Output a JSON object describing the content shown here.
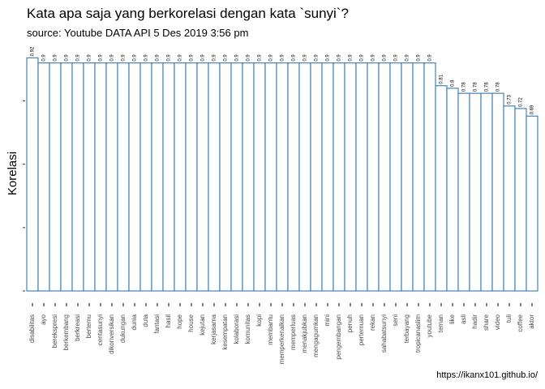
{
  "chart_data": {
    "type": "bar",
    "title": "Kata apa saja yang berkorelasi dengan kata `sunyi`?",
    "subtitle": "source: Youtube DATA API 5 Des 2019 3:56 pm",
    "y_label": "Korelasi",
    "caption": "https://ikanx101.github.io/",
    "categories": [
      "disabilitas",
      "ayo",
      "berekspresi",
      "berkembang",
      "berkreasi",
      "bertemu",
      "centasunyi",
      "dikonversikan",
      "dukungan",
      "dunia",
      "duta",
      "fantasi",
      "hasil",
      "hope",
      "house",
      "kejutan",
      "kerjasama",
      "kesempatan",
      "kolaborasi",
      "komunitas",
      "kopi",
      "membantu",
      "memperkenalkan",
      "memperluas",
      "menakjubkan",
      "mengagumkan",
      "mini",
      "pengembangan",
      "penuh",
      "pertemuan",
      "rekan",
      "sahabatsunyi",
      "seni",
      "terbayang",
      "tropicanaslim",
      "youtube",
      "teman",
      "like",
      "asli",
      "hadir",
      "share",
      "video",
      "tuli",
      "coffee",
      "aktor"
    ],
    "values": [
      0.92,
      0.9,
      0.9,
      0.9,
      0.9,
      0.9,
      0.9,
      0.9,
      0.9,
      0.9,
      0.9,
      0.9,
      0.9,
      0.9,
      0.9,
      0.9,
      0.9,
      0.9,
      0.9,
      0.9,
      0.9,
      0.9,
      0.9,
      0.9,
      0.9,
      0.9,
      0.9,
      0.9,
      0.9,
      0.9,
      0.9,
      0.9,
      0.9,
      0.9,
      0.9,
      0.9,
      0.81,
      0.8,
      0.78,
      0.78,
      0.78,
      0.78,
      0.73,
      0.72,
      0.69
    ],
    "color": "#4682b4",
    "ylim": [
      0,
      0.95
    ],
    "yticks": [
      0,
      0.25,
      0.5,
      0.75
    ]
  }
}
